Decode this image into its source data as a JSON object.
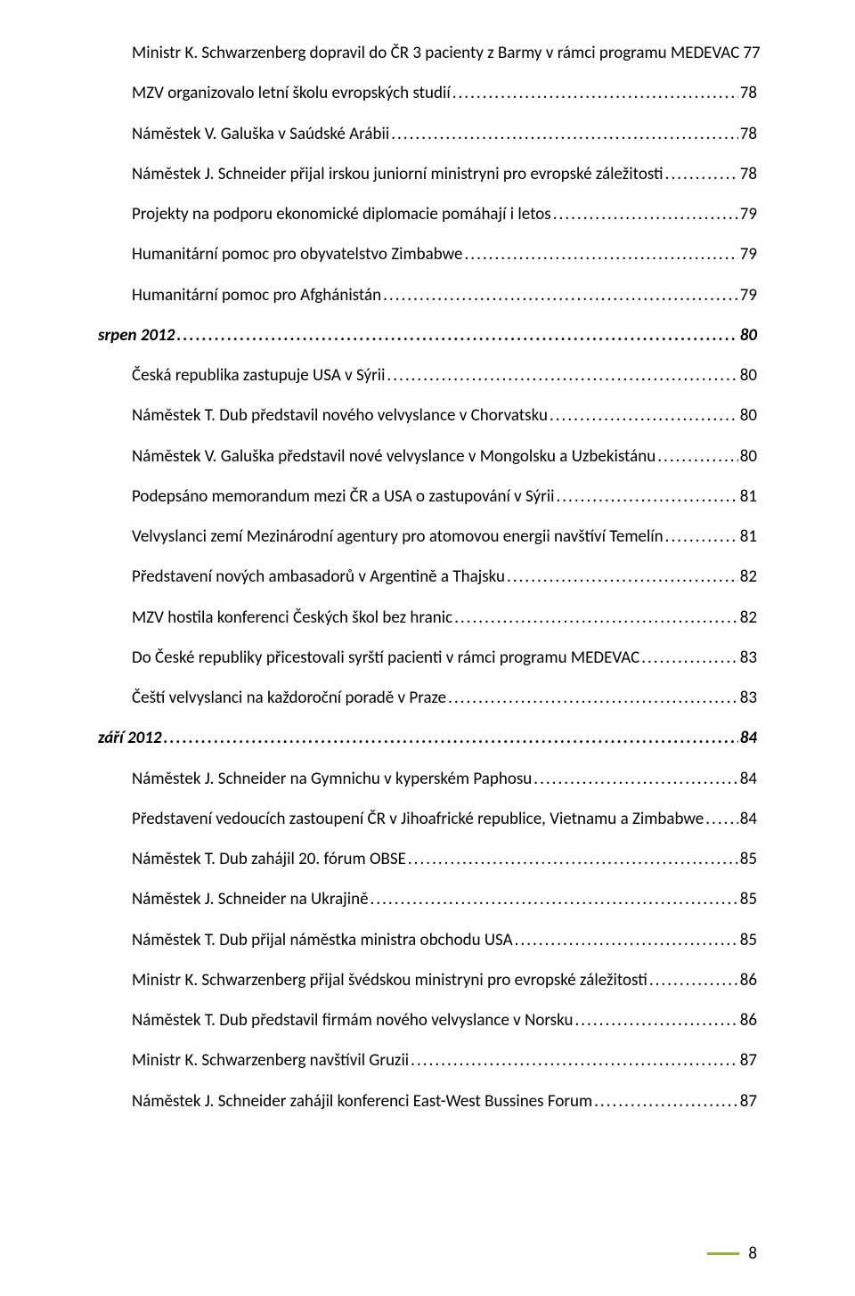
{
  "colors": {
    "text": "#000000",
    "background": "#ffffff",
    "accent_bar": "#93b044"
  },
  "typography": {
    "font_family": "Calibri",
    "body_size_pt": 14,
    "section_weight": 700,
    "section_style": "italic"
  },
  "page_number": "8",
  "toc": [
    {
      "level": 1,
      "title": "Ministr K. Schwarzenberg dopravil do ČR 3 pacienty z Barmy v rámci programu MEDEVAC",
      "page": "77"
    },
    {
      "level": 1,
      "title": "MZV organizovalo letní školu evropských studií",
      "page": "78"
    },
    {
      "level": 1,
      "title": "Náměstek V. Galuška v Saúdské Arábii",
      "page": "78"
    },
    {
      "level": 1,
      "title": "Náměstek J. Schneider přijal irskou juniorní ministryni pro evropské záležitosti",
      "page": "78"
    },
    {
      "level": 1,
      "title": "Projekty na podporu ekonomické diplomacie pomáhají i letos",
      "page": "79"
    },
    {
      "level": 1,
      "title": "Humanitární pomoc pro obyvatelstvo Zimbabwe",
      "page": "79"
    },
    {
      "level": 1,
      "title": "Humanitární pomoc pro Afghánistán",
      "page": "79"
    },
    {
      "level": 0,
      "section": true,
      "title": "srpen 2012",
      "page": "80"
    },
    {
      "level": 1,
      "title": "Česká republika zastupuje USA v Sýrii",
      "page": "80"
    },
    {
      "level": 1,
      "title": "Náměstek T. Dub představil nového velvyslance v Chorvatsku",
      "page": "80"
    },
    {
      "level": 1,
      "title": "Náměstek V. Galuška představil nové velvyslance v Mongolsku a Uzbekistánu",
      "page": "80"
    },
    {
      "level": 1,
      "title": "Podepsáno memorandum mezi ČR a USA o zastupování v Sýrii",
      "page": "81"
    },
    {
      "level": 1,
      "title": "Velvyslanci zemí Mezinárodní agentury pro atomovou energii navštíví Temelín",
      "page": "81"
    },
    {
      "level": 1,
      "title": "Představení nových ambasadorů v Argentině a Thajsku",
      "page": "82"
    },
    {
      "level": 1,
      "title": "MZV hostila konferenci Českých škol bez hranic",
      "page": "82"
    },
    {
      "level": 1,
      "title": "Do České republiky přicestovali syrští pacienti v rámci programu MEDEVAC",
      "page": "83"
    },
    {
      "level": 1,
      "title": "Čeští velvyslanci na každoroční poradě v Praze",
      "page": "83"
    },
    {
      "level": 0,
      "section": true,
      "title": "září 2012",
      "page": "84"
    },
    {
      "level": 1,
      "title": "Náměstek J. Schneider na Gymnichu v kyperském Paphosu",
      "page": "84"
    },
    {
      "level": 1,
      "title": "Představení vedoucích zastoupení ČR v Jihoafrické republice, Vietnamu a Zimbabwe",
      "page": "84"
    },
    {
      "level": 1,
      "title": "Náměstek T. Dub zahájil 20. fórum OBSE",
      "page": "85"
    },
    {
      "level": 1,
      "title": "Náměstek J. Schneider na Ukrajině",
      "page": "85"
    },
    {
      "level": 1,
      "title": "Náměstek T. Dub přijal náměstka ministra obchodu USA",
      "page": "85"
    },
    {
      "level": 1,
      "title": "Ministr K. Schwarzenberg přijal švédskou ministryni pro evropské záležitosti",
      "page": "86"
    },
    {
      "level": 1,
      "title": "Náměstek T. Dub představil firmám nového velvyslance v Norsku",
      "page": "86"
    },
    {
      "level": 1,
      "title": "Ministr K. Schwarzenberg navštívil Gruzii",
      "page": "87"
    },
    {
      "level": 1,
      "title": "Náměstek J. Schneider zahájil konferenci East-West Bussines Forum",
      "page": "87"
    }
  ]
}
